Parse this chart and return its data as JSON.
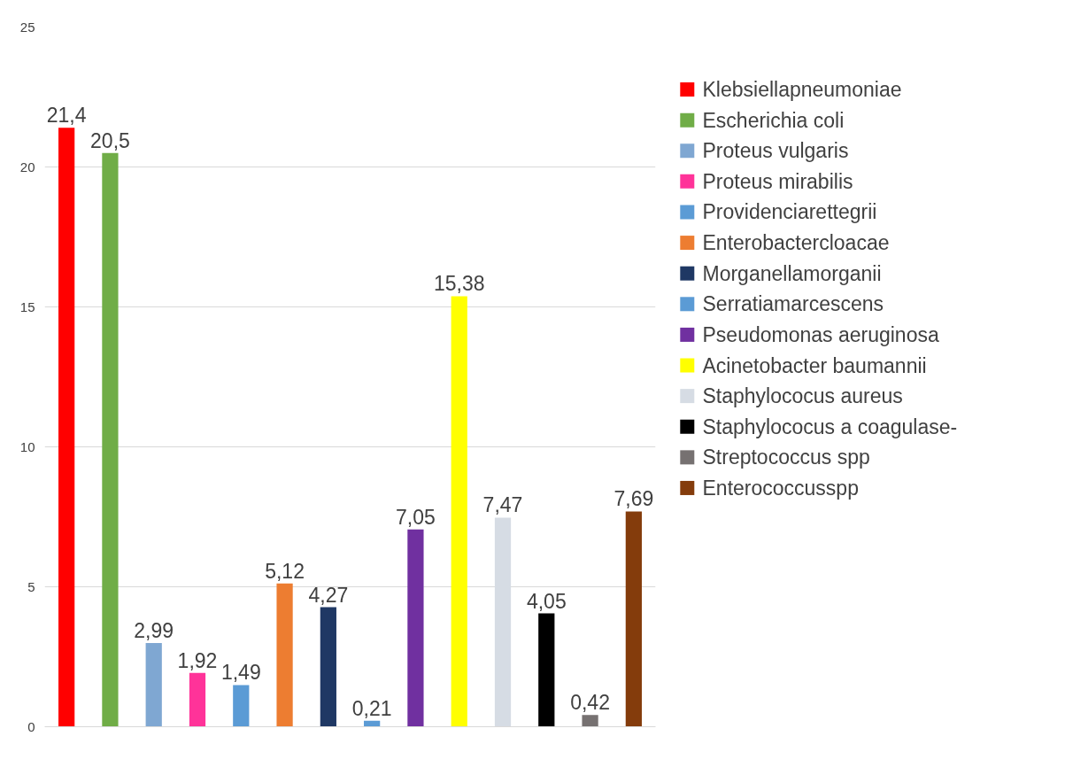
{
  "chart_data": {
    "type": "bar",
    "categories": [
      null,
      null,
      null,
      null,
      null,
      null,
      null,
      null,
      null,
      null,
      null,
      null,
      null,
      null
    ],
    "series": [
      {
        "name": "Klebsiellapneumoniae",
        "color": "#ff0000",
        "values": [
          21.4,
          null,
          null,
          null,
          null,
          null,
          null,
          null,
          null,
          null,
          null,
          null,
          null,
          null
        ],
        "value_labels": [
          "21,4",
          null,
          null,
          null,
          null,
          null,
          null,
          null,
          null,
          null,
          null,
          null,
          null,
          null
        ]
      },
      {
        "name": "Escherichia coli",
        "color": "#70ad47",
        "values": [
          null,
          20.5,
          null,
          null,
          null,
          null,
          null,
          null,
          null,
          null,
          null,
          null,
          null,
          null
        ],
        "value_labels": [
          null,
          "20,5",
          null,
          null,
          null,
          null,
          null,
          null,
          null,
          null,
          null,
          null,
          null,
          null
        ]
      },
      {
        "name": "Proteus vulgaris",
        "color": "#7fa7d2",
        "values": [
          null,
          null,
          2.99,
          null,
          null,
          null,
          null,
          null,
          null,
          null,
          null,
          null,
          null,
          null
        ],
        "value_labels": [
          null,
          null,
          "2,99",
          null,
          null,
          null,
          null,
          null,
          null,
          null,
          null,
          null,
          null,
          null
        ]
      },
      {
        "name": "Proteus mirabilis",
        "color": "#ff3399",
        "values": [
          null,
          null,
          null,
          1.92,
          null,
          null,
          null,
          null,
          null,
          null,
          null,
          null,
          null,
          null
        ],
        "value_labels": [
          null,
          null,
          null,
          "1,92",
          null,
          null,
          null,
          null,
          null,
          null,
          null,
          null,
          null,
          null
        ]
      },
      {
        "name": "Providenciarettegrii",
        "color": "#5b9bd5",
        "values": [
          null,
          null,
          null,
          null,
          1.49,
          null,
          null,
          null,
          null,
          null,
          null,
          null,
          null,
          null
        ],
        "value_labels": [
          null,
          null,
          null,
          null,
          "1,49",
          null,
          null,
          null,
          null,
          null,
          null,
          null,
          null,
          null
        ]
      },
      {
        "name": "Enterobactercloacae",
        "color": "#ed7d31",
        "values": [
          null,
          null,
          null,
          null,
          null,
          5.12,
          null,
          null,
          null,
          null,
          null,
          null,
          null,
          null
        ],
        "value_labels": [
          null,
          null,
          null,
          null,
          null,
          "5,12",
          null,
          null,
          null,
          null,
          null,
          null,
          null,
          null
        ]
      },
      {
        "name": "Morganellamorganii",
        "color": "#1f3864",
        "values": [
          null,
          null,
          null,
          null,
          null,
          null,
          4.27,
          null,
          null,
          null,
          null,
          null,
          null,
          null
        ],
        "value_labels": [
          null,
          null,
          null,
          null,
          null,
          null,
          "4,27",
          null,
          null,
          null,
          null,
          null,
          null,
          null
        ]
      },
      {
        "name": "Serratiamarcescens",
        "color": "#5b9bd5",
        "values": [
          null,
          null,
          null,
          null,
          null,
          null,
          null,
          0.21,
          null,
          null,
          null,
          null,
          null,
          null
        ],
        "value_labels": [
          null,
          null,
          null,
          null,
          null,
          null,
          null,
          "0,21",
          null,
          null,
          null,
          null,
          null,
          null
        ]
      },
      {
        "name": "Pseudomonas aeruginosa",
        "color": "#7030a0",
        "values": [
          null,
          null,
          null,
          null,
          null,
          null,
          null,
          null,
          7.05,
          null,
          null,
          null,
          null,
          null
        ],
        "value_labels": [
          null,
          null,
          null,
          null,
          null,
          null,
          null,
          null,
          "7,05",
          null,
          null,
          null,
          null,
          null
        ]
      },
      {
        "name": "Acinetobacter baumannii",
        "color": "#ffff00",
        "values": [
          null,
          null,
          null,
          null,
          null,
          null,
          null,
          null,
          null,
          15.38,
          null,
          null,
          null,
          null
        ],
        "value_labels": [
          null,
          null,
          null,
          null,
          null,
          null,
          null,
          null,
          null,
          "15,38",
          null,
          null,
          null,
          null
        ]
      },
      {
        "name": "Staphylococus aureus",
        "color": "#d6dce4",
        "values": [
          null,
          null,
          null,
          null,
          null,
          null,
          null,
          null,
          null,
          null,
          7.47,
          null,
          null,
          null
        ],
        "value_labels": [
          null,
          null,
          null,
          null,
          null,
          null,
          null,
          null,
          null,
          null,
          "7,47",
          null,
          null,
          null
        ]
      },
      {
        "name": "Staphylococus a coagulase-",
        "color": "#000000",
        "values": [
          null,
          null,
          null,
          null,
          null,
          null,
          null,
          null,
          null,
          null,
          null,
          4.05,
          null,
          null
        ],
        "value_labels": [
          null,
          null,
          null,
          null,
          null,
          null,
          null,
          null,
          null,
          null,
          null,
          "4,05",
          null,
          null
        ]
      },
      {
        "name": "Streptococcus spp",
        "color": "#767171",
        "values": [
          null,
          null,
          null,
          null,
          null,
          null,
          null,
          null,
          null,
          null,
          null,
          null,
          0.42,
          null
        ],
        "value_labels": [
          null,
          null,
          null,
          null,
          null,
          null,
          null,
          null,
          null,
          null,
          null,
          null,
          "0,42",
          null
        ]
      },
      {
        "name": "Enterococcusspp",
        "color": "#843c0c",
        "values": [
          null,
          null,
          null,
          null,
          null,
          null,
          null,
          null,
          null,
          null,
          null,
          null,
          null,
          7.69
        ],
        "value_labels": [
          null,
          null,
          null,
          null,
          null,
          null,
          null,
          null,
          null,
          null,
          null,
          null,
          null,
          "7,69"
        ]
      }
    ],
    "ylim": [
      0,
      25
    ],
    "yticks": [
      0,
      5,
      10,
      15,
      20,
      25
    ],
    "grid": "y",
    "legend": "right"
  }
}
